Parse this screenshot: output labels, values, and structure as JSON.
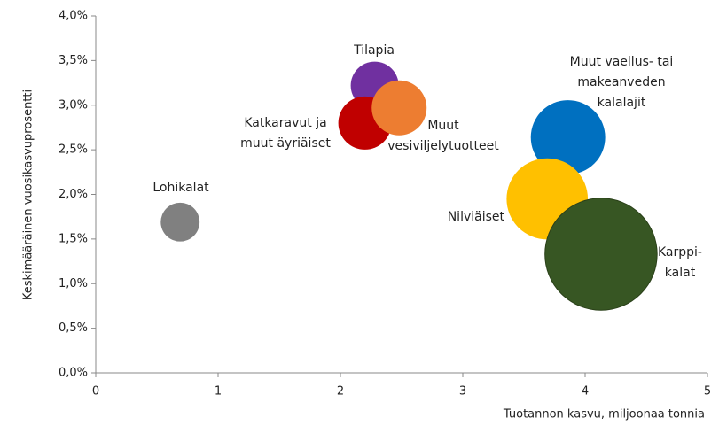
{
  "chart_data": {
    "type": "bubble",
    "x_label": "Tuotannon kasvu, miljoonaa tonnia",
    "y_label": "Keskimääräinen vuosikasvuprosentti",
    "xlim": [
      0,
      5
    ],
    "xticks": [
      0,
      1,
      2,
      3,
      4,
      5
    ],
    "ylim": [
      0,
      4
    ],
    "yticks": [
      {
        "value": 0,
        "label": "0,0%"
      },
      {
        "value": 0.5,
        "label": "0,5%"
      },
      {
        "value": 1,
        "label": "1,0%"
      },
      {
        "value": 1.5,
        "label": "1,5%"
      },
      {
        "value": 2,
        "label": "2,0%"
      },
      {
        "value": 2.5,
        "label": "2,5%"
      },
      {
        "value": 3,
        "label": "3,0%"
      },
      {
        "value": 3.5,
        "label": "3,5%"
      },
      {
        "value": 4,
        "label": "4,0%"
      }
    ],
    "series": [
      {
        "label": [
          "Lohikalat"
        ],
        "color": "#808080",
        "x": 0.69,
        "y": 1.69,
        "size": 4.8
      },
      {
        "label": [
          "Tilapia"
        ],
        "color": "#7030a0",
        "x": 2.28,
        "y": 3.22,
        "size": 7.3
      },
      {
        "label": [
          "Katkaravut ja",
          "muut äyriäiset"
        ],
        "color": "#c00000",
        "x": 2.2,
        "y": 2.8,
        "size": 9
      },
      {
        "label": [
          "Muut",
          "vesiviljelytuotteet"
        ],
        "color": "#ed7d31",
        "x": 2.48,
        "y": 2.97,
        "size": 9.6
      },
      {
        "label": [
          "Muut vaellus- tai",
          "makeanveden",
          "kalalajit"
        ],
        "color": "#0070c0",
        "x": 3.86,
        "y": 2.64,
        "size": 17.6
      },
      {
        "label": [
          "Nilviäiset"
        ],
        "color": "#ffc000",
        "x": 3.69,
        "y": 1.95,
        "size": 21
      },
      {
        "label": [
          "Karppi-",
          "kalat"
        ],
        "color": "#375623",
        "x": 4.13,
        "y": 1.33,
        "size": 40
      }
    ]
  }
}
